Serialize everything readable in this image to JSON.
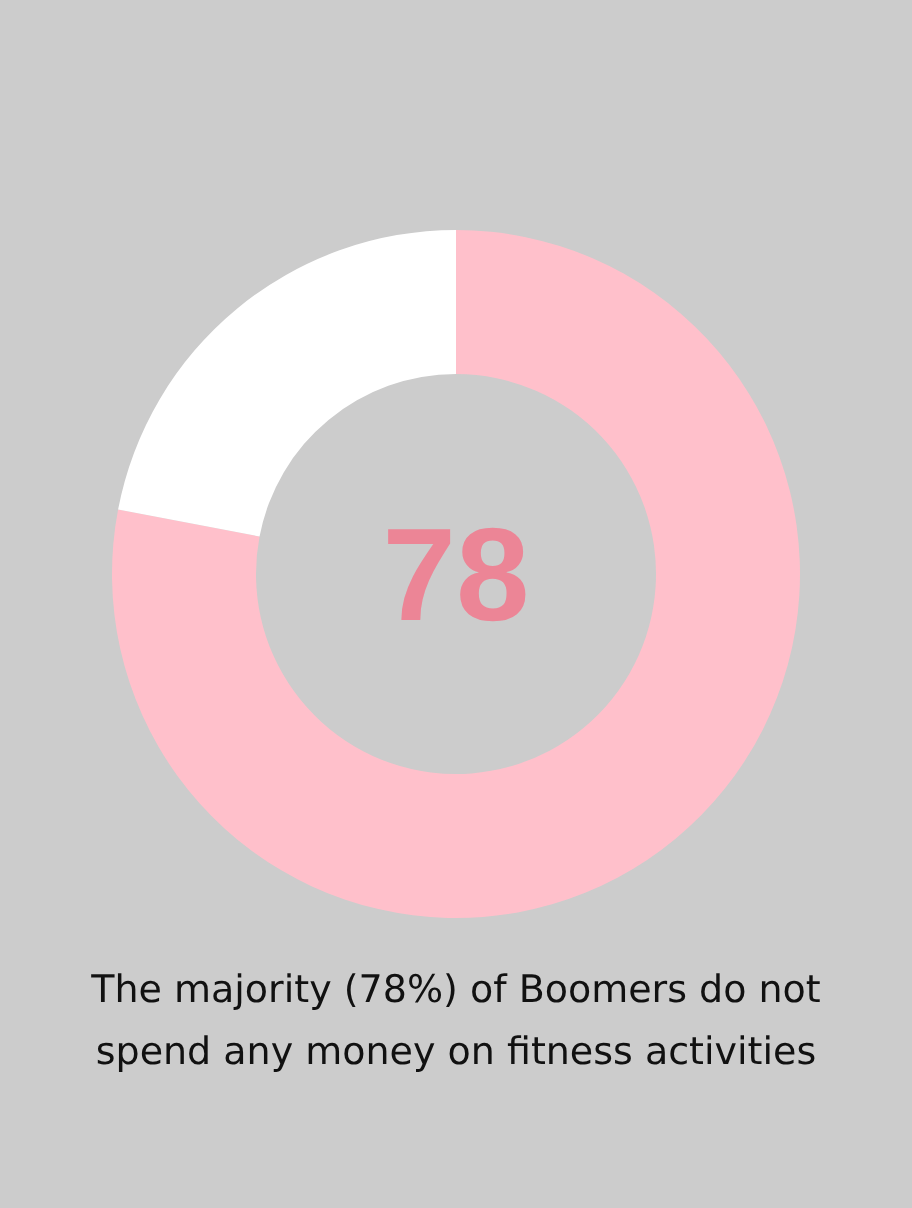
{
  "chart_data": {
    "type": "donut",
    "categories": [
      null,
      null
    ],
    "values": [
      78,
      22
    ],
    "colors": [
      "#ffc0cb",
      "#ffffff"
    ],
    "annotations": [
      "78",
      "The majority (78%) of Boomers do not spend any money on fitness activities"
    ]
  }
}
